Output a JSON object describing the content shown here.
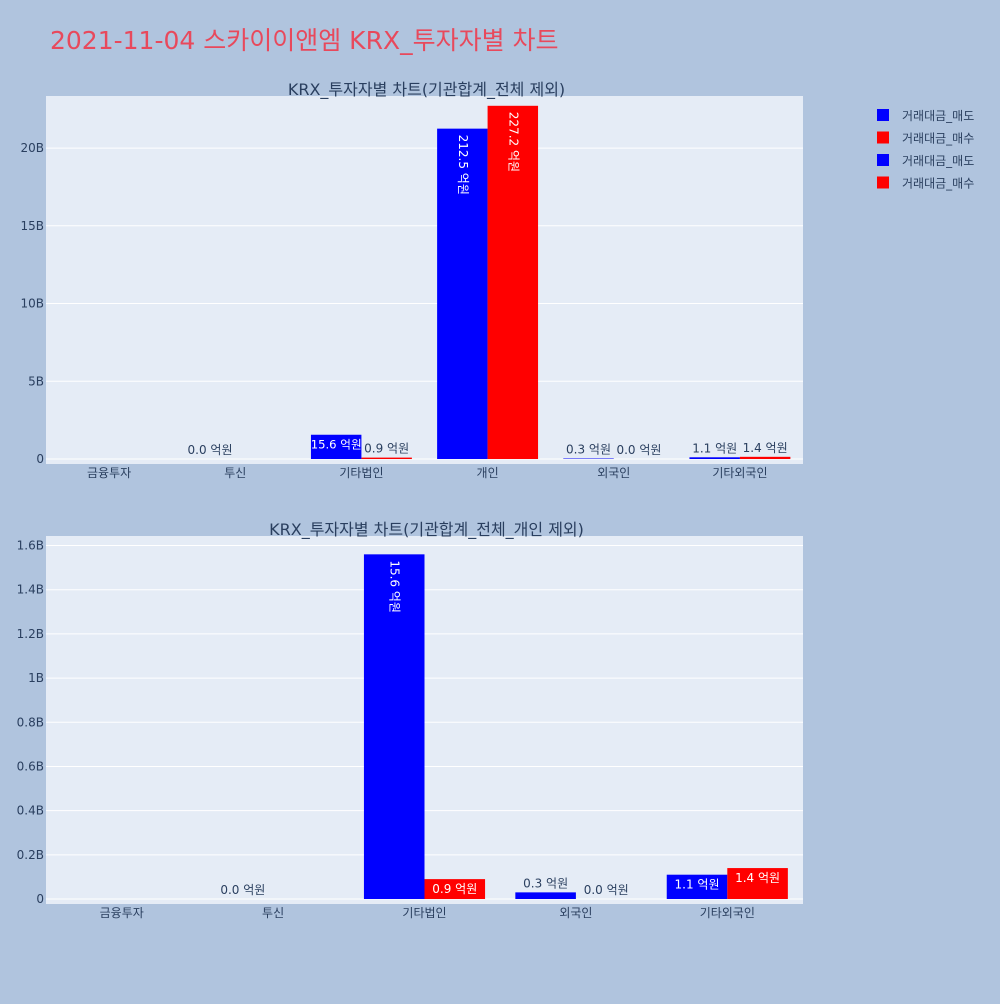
{
  "page_title": "2021-11-04 스카이이앤엠 KRX_투자자별 차트",
  "colors": {
    "background": "#b0c4de",
    "plot_bg": "#e5ecf6",
    "title": "#e8495c",
    "sell": "#0000ff",
    "buy": "#ff0000",
    "text": "#2a3f5f"
  },
  "legend": [
    {
      "label": "거래대금_매도",
      "color": "#0000ff"
    },
    {
      "label": "거래대금_매수",
      "color": "#ff0000"
    },
    {
      "label": "거래대금_매도",
      "color": "#0000ff"
    },
    {
      "label": "거래대금_매수",
      "color": "#ff0000"
    }
  ],
  "chart_data": [
    {
      "type": "bar",
      "title": "KRX_투자자별 차트(기관합계_전체 제외)",
      "categories": [
        "금융투자",
        "투신",
        "기타법인",
        "개인",
        "외국인",
        "기타외국인"
      ],
      "series": [
        {
          "name": "거래대금_매도",
          "color": "#0000ff",
          "values": [
            0,
            0,
            1560000000,
            21250000000,
            30000000,
            110000000
          ],
          "labels": [
            "",
            "0.0 억원",
            "15.6 억원",
            "212.5 억원",
            "0.3 억원",
            "1.1 억원"
          ]
        },
        {
          "name": "거래대금_매수",
          "color": "#ff0000",
          "values": [
            0,
            0,
            90000000,
            22720000000,
            0,
            140000000
          ],
          "labels": [
            "",
            "",
            "0.9 억원",
            "227.2 억원",
            "0.0 억원",
            "1.4 억원"
          ]
        }
      ],
      "yticks": [
        0,
        5000000000,
        10000000000,
        15000000000,
        20000000000
      ],
      "yticklabels": [
        "0",
        "5B",
        "10B",
        "15B",
        "20B"
      ],
      "ylim": [
        0,
        23350000000
      ]
    },
    {
      "type": "bar",
      "title": "KRX_투자자별 차트(기관합계_전체_개인 제외)",
      "categories": [
        "금융투자",
        "투신",
        "기타법인",
        "외국인",
        "기타외국인"
      ],
      "series": [
        {
          "name": "거래대금_매도",
          "color": "#0000ff",
          "values": [
            0,
            0,
            1560000000,
            30000000,
            110000000
          ],
          "labels": [
            "",
            "0.0 억원",
            "15.6 억원",
            "0.3 억원",
            "1.1 억원"
          ]
        },
        {
          "name": "거래대금_매수",
          "color": "#ff0000",
          "values": [
            0,
            0,
            90000000,
            0,
            140000000
          ],
          "labels": [
            "",
            "",
            "0.9 억원",
            "0.0 억원",
            "1.4 억원"
          ]
        }
      ],
      "yticks": [
        0,
        200000000,
        400000000,
        600000000,
        800000000,
        1000000000,
        1200000000,
        1400000000,
        1600000000
      ],
      "yticklabels": [
        "0",
        "0.2B",
        "0.4B",
        "0.6B",
        "0.8B",
        "1B",
        "1.2B",
        "1.4B",
        "1.6B"
      ],
      "ylim": [
        0,
        1643000000
      ]
    }
  ]
}
